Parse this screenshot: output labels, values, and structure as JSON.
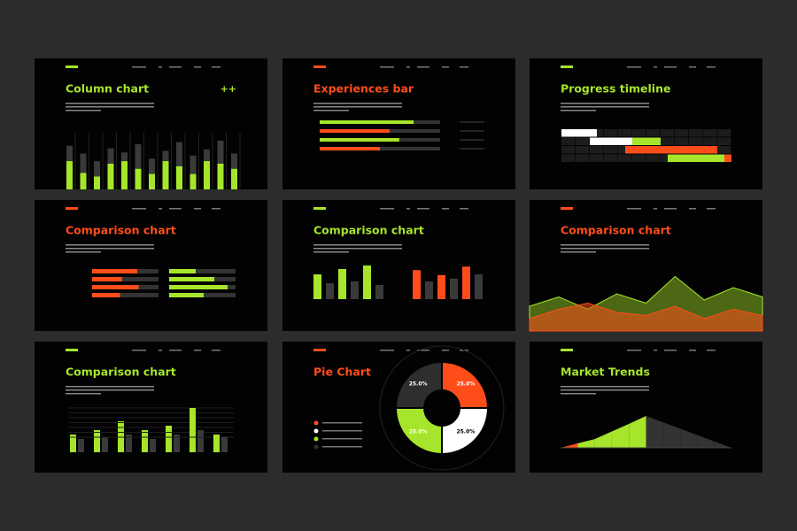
{
  "slides": [
    {
      "title": "Column chart",
      "badge": "++",
      "accent": "#a6e52b",
      "kind": "columns",
      "back": [
        85,
        70,
        55,
        80,
        72,
        88,
        60,
        75,
        92,
        66,
        78,
        95,
        70
      ],
      "front": [
        55,
        32,
        25,
        50,
        55,
        40,
        30,
        55,
        45,
        30,
        55,
        50,
        40
      ]
    },
    {
      "title": "Experiences bar",
      "accent": "#ff4d1a",
      "kind": "hbars",
      "values": [
        78,
        58,
        66,
        50
      ],
      "colors": [
        "#a6e52b",
        "#ff4d1a",
        "#a6e52b",
        "#ff4d1a"
      ]
    },
    {
      "title": "Progress timeline",
      "accent": "#a6e52b",
      "kind": "gantt",
      "rows": [
        {
          "segments": [
            {
              "start": 0,
              "end": 2.5,
              "color": "#ffffff"
            }
          ]
        },
        {
          "segments": [
            {
              "start": 2,
              "end": 5,
              "color": "#ffffff"
            },
            {
              "start": 5,
              "end": 7,
              "color": "#a6e52b"
            }
          ]
        },
        {
          "segments": [
            {
              "start": 4.5,
              "end": 11,
              "color": "#ff4d1a"
            }
          ]
        },
        {
          "segments": [
            {
              "start": 7.5,
              "end": 11.5,
              "color": "#a6e52b"
            },
            {
              "start": 11.5,
              "end": 12,
              "color": "#ff4d1a"
            }
          ]
        }
      ]
    },
    {
      "title": "Comparison chart",
      "accent": "#ff4d1a",
      "kind": "pairbars",
      "groups": [
        {
          "color": "#ff4d1a",
          "values": [
            68,
            45,
            70,
            42
          ]
        },
        {
          "color": "#a6e52b",
          "values": [
            40,
            68,
            88,
            52
          ]
        }
      ]
    },
    {
      "title": "Comparison chart",
      "accent": "#a6e52b",
      "kind": "groupcols",
      "groups": [
        {
          "color": "#a6e52b",
          "values": [
            70,
            45,
            85,
            50,
            95,
            40
          ]
        },
        {
          "color": "#ff4d1a",
          "values": [
            82,
            50,
            68,
            58,
            92,
            70
          ]
        }
      ]
    },
    {
      "title": "Comparison chart",
      "accent": "#ff4d1a",
      "kind": "waves",
      "series": [
        {
          "color": "#a6e52b",
          "values": [
            40,
            55,
            35,
            60,
            45,
            88,
            50,
            70,
            55
          ]
        },
        {
          "color": "#ff4d1a",
          "values": [
            20,
            35,
            45,
            30,
            25,
            40,
            20,
            35,
            25
          ]
        }
      ]
    },
    {
      "title": "Comparison chart",
      "accent": "#a6e52b",
      "kind": "pairedcols",
      "green": [
        40,
        50,
        70,
        50,
        60,
        100,
        40
      ],
      "gray": [
        30,
        35,
        40,
        30,
        40,
        50,
        35
      ]
    },
    {
      "title": "Pie Chart",
      "accent": "#ff4d1a",
      "kind": "pie",
      "values": [
        25,
        25,
        25,
        25
      ],
      "value_labels": [
        "25.0%",
        "25.0%",
        "25.0%",
        "25.0%"
      ],
      "colors": [
        "#ff4d1a",
        "#ffffff",
        "#a6e52b",
        "#2e2e2e"
      ]
    },
    {
      "title": "Market Trends",
      "accent": "#a6e52b",
      "kind": "trend",
      "values": [
        0,
        11,
        22,
        41,
        60,
        80,
        64,
        48,
        32,
        16,
        0
      ],
      "segment_colors": [
        "#ff4d1a",
        "#a6e52b",
        "#a6e52b",
        "#a6e52b",
        "#a6e52b",
        "#333333",
        "#333333",
        "#333333",
        "#333333",
        "#333333"
      ]
    }
  ]
}
